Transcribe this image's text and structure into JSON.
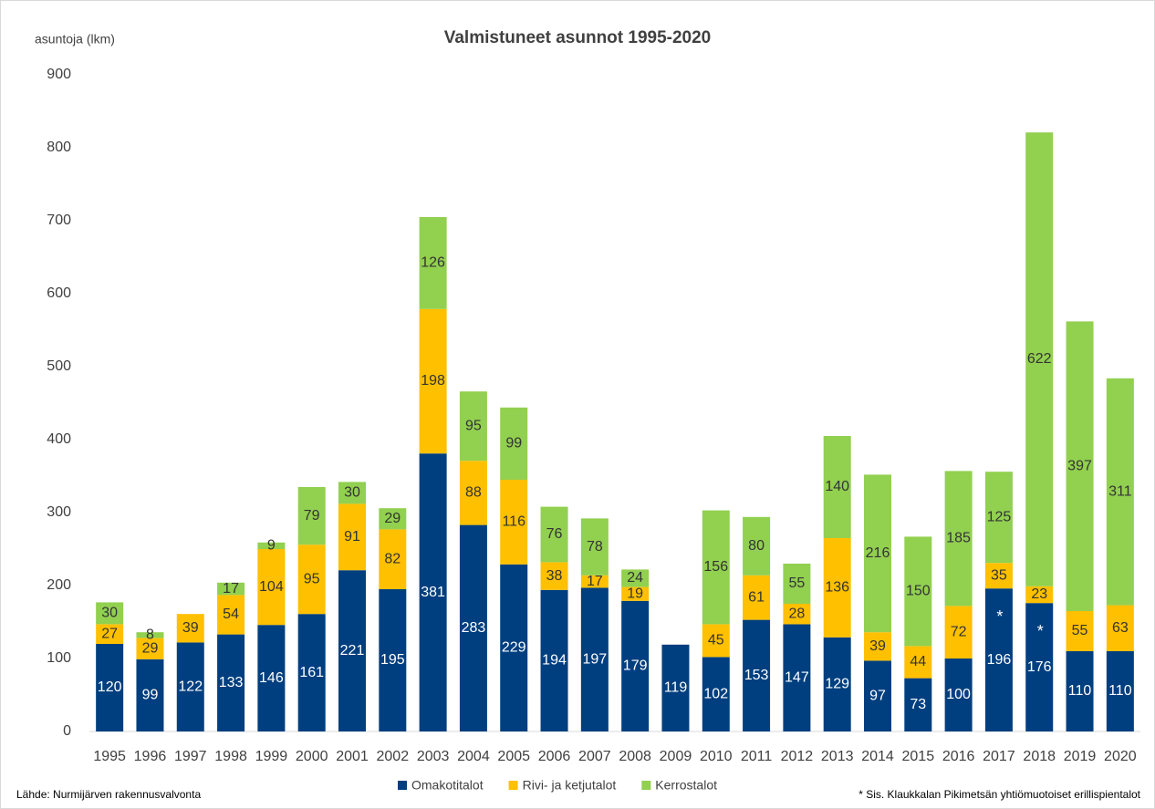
{
  "chart_data": {
    "type": "stacked_bar",
    "title": "Valmistuneet asunnot 1995-2020",
    "y_label": "asuntoja (lkm)",
    "source": "Lähde: Nurmijärven rakennusvalvonta",
    "footnote": "* Sis. Klaukkalan Pikimetsän yhtiömuotoiset erillispientalot",
    "annotations": [
      {
        "text": "*",
        "category": "2017"
      },
      {
        "text": "*",
        "category": "2018"
      }
    ],
    "categories": [
      "1995",
      "1996",
      "1997",
      "1998",
      "1999",
      "2000",
      "2001",
      "2002",
      "2003",
      "2004",
      "2005",
      "2006",
      "2007",
      "2008",
      "2009",
      "2010",
      "2011",
      "2012",
      "2013",
      "2014",
      "2015",
      "2016",
      "2017",
      "2018",
      "2019",
      "2020"
    ],
    "series": [
      {
        "name": "Omakotitalot",
        "color": "#003f7f",
        "label_color": "#ffffff",
        "values": [
          120,
          99,
          122,
          133,
          146,
          161,
          221,
          195,
          381,
          283,
          229,
          194,
          197,
          179,
          119,
          102,
          153,
          147,
          129,
          97,
          73,
          100,
          196,
          176,
          110,
          110
        ]
      },
      {
        "name": "Rivi- ja ketjutalot",
        "color": "#ffc000",
        "label_color": "#333333",
        "values": [
          27,
          29,
          39,
          54,
          104,
          95,
          91,
          82,
          198,
          88,
          116,
          38,
          17,
          19,
          null,
          45,
          61,
          28,
          136,
          39,
          44,
          72,
          35,
          23,
          55,
          63
        ]
      },
      {
        "name": "Kerrostalot",
        "color": "#92d050",
        "label_color": "#333333",
        "values": [
          30,
          8,
          null,
          17,
          9,
          79,
          30,
          29,
          126,
          95,
          99,
          76,
          78,
          24,
          null,
          156,
          80,
          55,
          140,
          216,
          150,
          185,
          125,
          622,
          397,
          311
        ]
      }
    ],
    "ylim": [
      0,
      900
    ],
    "yticks": [
      0,
      100,
      200,
      300,
      400,
      500,
      600,
      700,
      800,
      900
    ],
    "grid": false,
    "legend": "bottom"
  }
}
